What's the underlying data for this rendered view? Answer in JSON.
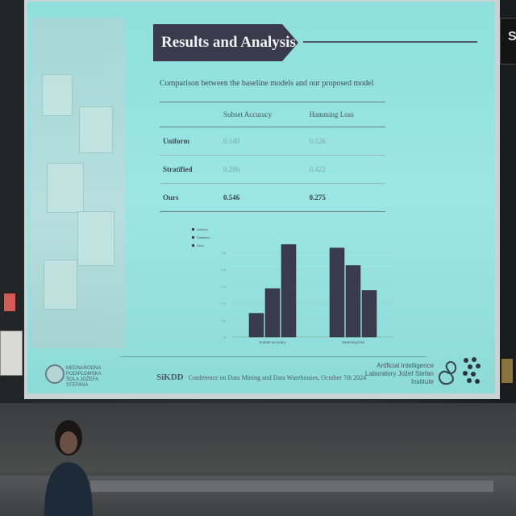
{
  "slide": {
    "title": "Results and Analysis",
    "subtitle": "Comparison between the baseline models and our proposed model",
    "table": {
      "headers": [
        "",
        "Subset Accuracy",
        "Hamming Loss"
      ],
      "rows": [
        {
          "label": "Uniform",
          "subset_accuracy": "0.140",
          "hamming_loss": "0.526"
        },
        {
          "label": "Stratified",
          "subset_accuracy": "0.286",
          "hamming_loss": "0.422"
        },
        {
          "label": "Ours",
          "subset_accuracy": "0.546",
          "hamming_loss": "0.275"
        }
      ]
    },
    "footer": {
      "conference_abbrev": "SiKDD",
      "conference_text": "Conference on Data Mining and Data Warehouses, October 7th 2024"
    },
    "left_logo_text": "MEDNARODNA PODIPLOMSKA ŠOLA JOŽEFA STEFANA",
    "lab_name": "Artificial Intelligence Laboratory Jožef Stefan Institute"
  },
  "corner_label": "S",
  "chart_data": {
    "type": "bar",
    "categories": [
      "Subset accuracy",
      "Hamming loss"
    ],
    "series": [
      {
        "name": "Uniform",
        "values": [
          0.14,
          0.526
        ]
      },
      {
        "name": "Stratified",
        "values": [
          0.286,
          0.422
        ]
      },
      {
        "name": "Ours",
        "values": [
          0.546,
          0.275
        ]
      }
    ],
    "ylim": [
      0,
      0.6
    ],
    "yticks": [
      "0",
      "0.1",
      "0.2",
      "0.3",
      "0.4",
      "0.5"
    ],
    "legend": "top-left",
    "color": "#3b3b4f"
  }
}
